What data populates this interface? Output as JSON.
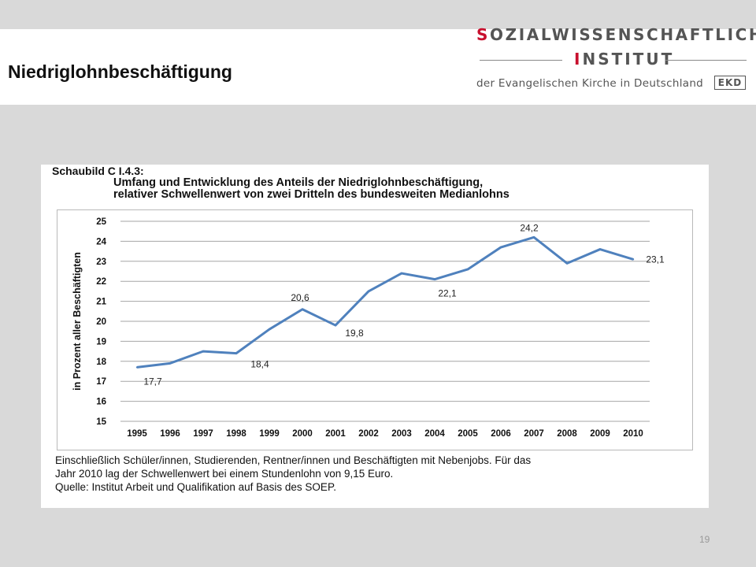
{
  "slide": {
    "title": "Niedriglohnbeschäftigung",
    "page_number": "19"
  },
  "logo": {
    "line1_first": "S",
    "line1_rest": "OZIALWISSENSCHAFTLICHES",
    "line2_first": "I",
    "line2_rest": "NSTITUT",
    "line3": "der Evangelischen Kirche in Deutschland",
    "badge": "EKD"
  },
  "figure": {
    "label": "Schaubild C I.4.3:",
    "title_line1": "Umfang und Entwicklung des Anteils der Niedriglohnbeschäftigung,",
    "title_line2": "relativer Schwellenwert von zwei Dritteln des bundesweiten Medianlohns",
    "note_line1": "Einschließlich Schüler/innen, Studierenden, Rentner/innen und Beschäftigten mit Nebenjobs. Für das",
    "note_line2": "Jahr 2010 lag der Schwellenwert bei einem Stundenlohn von 9,15 Euro.",
    "note_line3": "Quelle: Institut Arbeit und Qualifikation auf Basis des SOEP."
  },
  "chart_data": {
    "type": "line",
    "ylabel": "in Prozent aller Beschäftigten",
    "xlabel": "",
    "categories": [
      "1995",
      "1996",
      "1997",
      "1998",
      "1999",
      "2000",
      "2001",
      "2002",
      "2003",
      "2004",
      "2005",
      "2006",
      "2007",
      "2008",
      "2009",
      "2010"
    ],
    "series": [
      {
        "values": [
          17.7,
          17.9,
          18.5,
          18.4,
          19.6,
          20.6,
          19.8,
          21.5,
          22.4,
          22.1,
          22.6,
          23.7,
          24.2,
          22.9,
          23.6,
          23.1
        ]
      }
    ],
    "data_labels": [
      {
        "category": "1995",
        "text": "17,7"
      },
      {
        "category": "1998",
        "text": "18,4"
      },
      {
        "category": "2000",
        "text": "20,6"
      },
      {
        "category": "2001",
        "text": "19,8"
      },
      {
        "category": "2004",
        "text": "22,1"
      },
      {
        "category": "2007",
        "text": "24,2"
      },
      {
        "category": "2010",
        "text": "23,1"
      }
    ],
    "y_ticks": [
      "15",
      "16",
      "17",
      "18",
      "19",
      "20",
      "21",
      "22",
      "23",
      "24",
      "25"
    ],
    "ylim": [
      15,
      25
    ],
    "grid": true,
    "line_color": "#4f81bd",
    "grid_color": "#a6a6a6"
  }
}
